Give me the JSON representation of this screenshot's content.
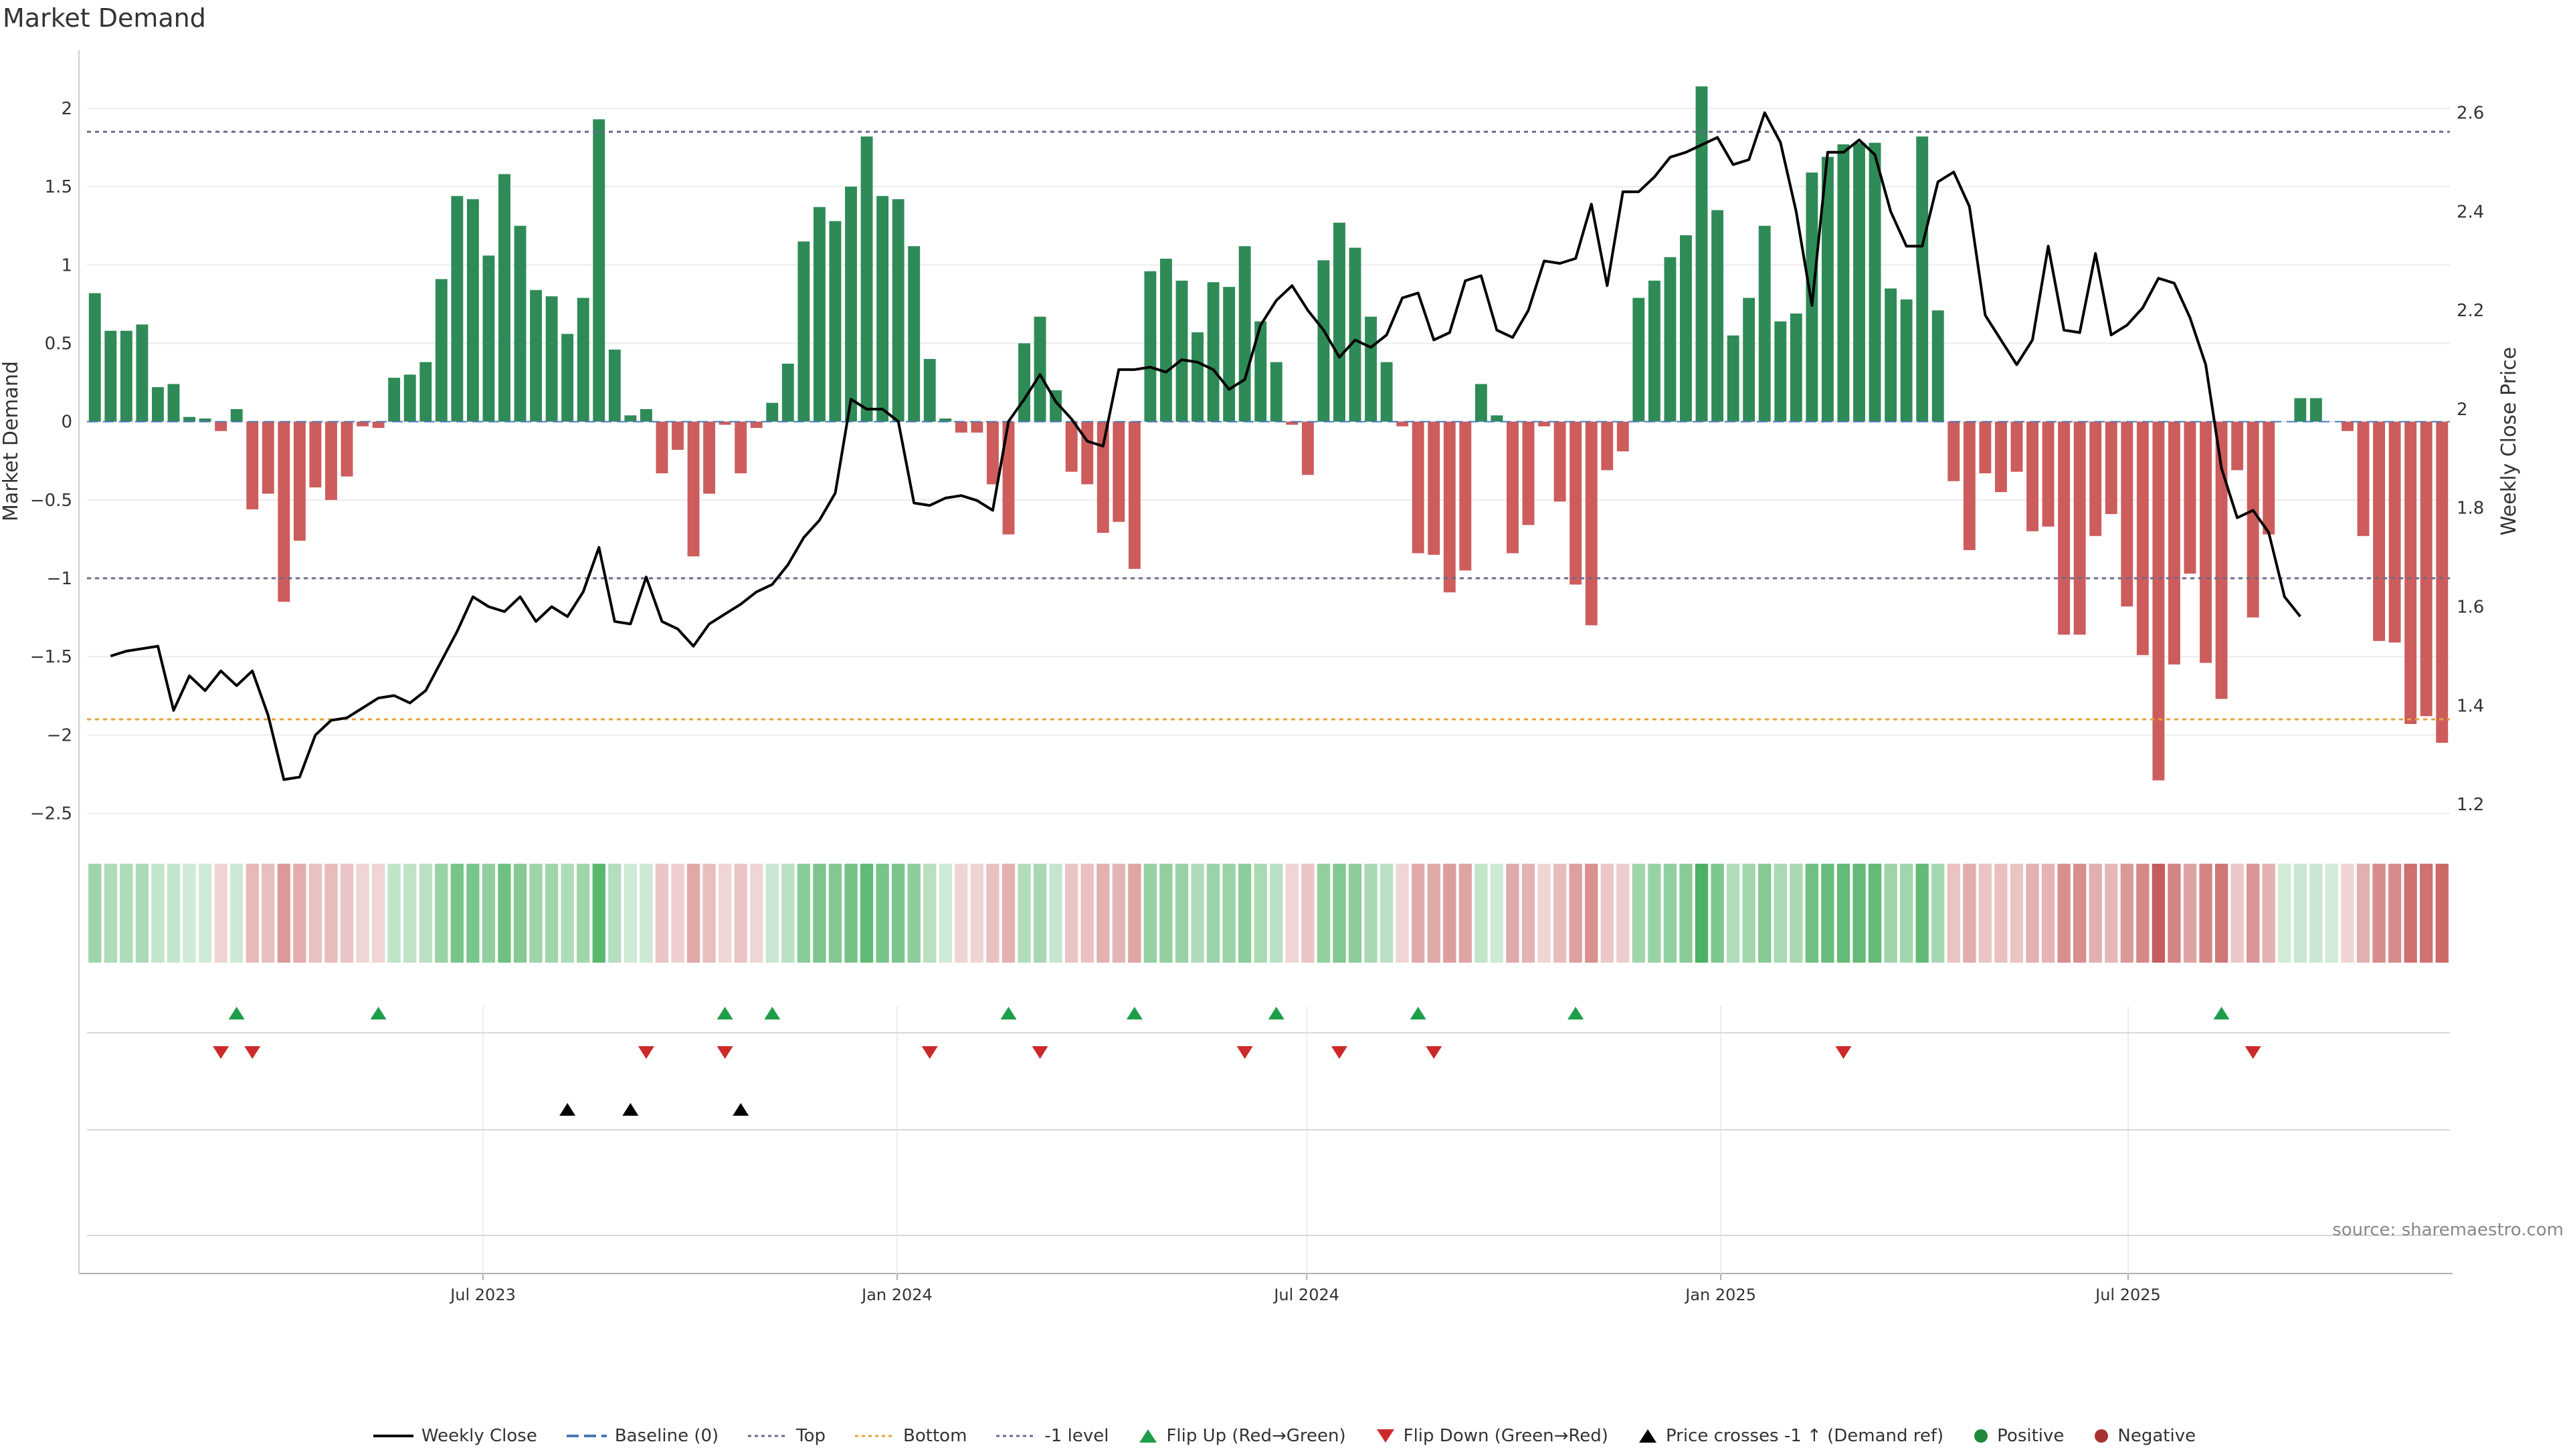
{
  "chart_data": {
    "type": "bar",
    "title": "Market Demand",
    "y_left_label": "Market Demand",
    "y_right_label": "Weekly Close Price",
    "ylim_left": [
      -2.6,
      2.35
    ],
    "ylim_right": [
      1.15,
      2.72
    ],
    "y_left_ticks": [
      2,
      1.5,
      1,
      0.5,
      0,
      -0.5,
      -1,
      -1.5,
      -2,
      -2.5
    ],
    "y_right_ticks": [
      2.6,
      2.4,
      2.2,
      2,
      1.8,
      1.6,
      1.4,
      1.2
    ],
    "x_start": "2023-01-06",
    "x_tick_labels": [
      {
        "date": "2023-07-01",
        "label": "Jul 2023"
      },
      {
        "date": "2024-01-01",
        "label": "Jan 2024"
      },
      {
        "date": "2024-07-01",
        "label": "Jul 2024"
      },
      {
        "date": "2025-01-01",
        "label": "Jan 2025"
      },
      {
        "date": "2025-07-01",
        "label": "Jul 2025"
      }
    ],
    "reference_lines": {
      "top": 1.85,
      "bottom": -1.9,
      "minus_one_level": -1,
      "baseline": 0
    },
    "colors": {
      "positive": "#2e8b57",
      "negative": "#cd5c5c",
      "price": "#000000",
      "top": "#6b6b8a",
      "bottom": "#e8a23a",
      "baseline": "#4a7ab8",
      "flip_up": "#1e9e4a",
      "flip_down": "#cc2a2a",
      "cross": "#000000"
    },
    "demand": [
      0.82,
      0.58,
      0.58,
      0.62,
      0.22,
      0.24,
      0.03,
      0.02,
      -0.06,
      0.08,
      -0.56,
      -0.46,
      -1.15,
      -0.76,
      -0.42,
      -0.5,
      -0.35,
      -0.03,
      -0.04,
      0.28,
      0.3,
      0.38,
      0.91,
      1.44,
      1.42,
      1.06,
      1.58,
      1.25,
      0.84,
      0.8,
      0.56,
      0.79,
      1.93,
      0.46,
      0.04,
      0.08,
      -0.33,
      -0.18,
      -0.86,
      -0.46,
      -0.02,
      -0.33,
      -0.04,
      0.12,
      0.37,
      1.15,
      1.37,
      1.28,
      1.5,
      1.82,
      1.44,
      1.42,
      1.12,
      0.4,
      0.02,
      -0.07,
      -0.07,
      -0.4,
      -0.72,
      0.5,
      0.67,
      0.2,
      -0.32,
      -0.4,
      -0.71,
      -0.64,
      -0.94,
      0.96,
      1.04,
      0.9,
      0.57,
      0.89,
      0.86,
      1.12,
      0.64,
      0.38,
      -0.02,
      -0.34,
      1.03,
      1.27,
      1.11,
      0.67,
      0.38,
      -0.03,
      -0.84,
      -0.85,
      -1.09,
      -0.95,
      0.24,
      0.04,
      -0.84,
      -0.66,
      -0.03,
      -0.51,
      -1.04,
      -1.3,
      -0.31,
      -0.19,
      0.79,
      0.9,
      1.05,
      1.19,
      2.14,
      1.35,
      0.55,
      0.79,
      1.25,
      0.64,
      0.69,
      1.59,
      1.69,
      1.77,
      1.78,
      1.78,
      0.85,
      0.78,
      1.82,
      0.71,
      -0.38,
      -0.82,
      -0.33,
      -0.45,
      -0.32,
      -0.7,
      -0.67,
      -1.36,
      -1.36,
      -0.73,
      -0.59,
      -1.18,
      -1.49,
      -2.29,
      -1.55,
      -0.97,
      -1.54,
      -1.77,
      -0.31,
      -1.25,
      -0.72,
      0.0,
      0.15,
      0.15,
      0.0,
      -0.06,
      -0.73,
      -1.4,
      -1.41,
      -1.93,
      -1.88,
      -2.05
    ],
    "weekly_close": [
      1.5,
      1.51,
      1.515,
      1.52,
      1.39,
      1.46,
      1.43,
      1.47,
      1.44,
      1.47,
      1.38,
      1.25,
      1.255,
      1.34,
      1.37,
      1.375,
      1.395,
      1.415,
      1.42,
      1.405,
      1.43,
      1.49,
      1.55,
      1.62,
      1.6,
      1.59,
      1.62,
      1.57,
      1.6,
      1.58,
      1.63,
      1.72,
      1.57,
      1.565,
      1.66,
      1.57,
      1.555,
      1.52,
      1.565,
      1.585,
      1.605,
      1.63,
      1.645,
      1.685,
      1.74,
      1.775,
      1.83,
      2.02,
      2.0,
      2.0,
      1.975,
      1.81,
      1.805,
      1.82,
      1.825,
      1.815,
      1.795,
      1.975,
      2.02,
      2.07,
      2.015,
      1.98,
      1.935,
      1.925,
      2.08,
      2.08,
      2.085,
      2.075,
      2.1,
      2.095,
      2.08,
      2.04,
      2.06,
      2.17,
      2.22,
      2.25,
      2.2,
      2.16,
      2.105,
      2.14,
      2.125,
      2.15,
      2.225,
      2.235,
      2.14,
      2.155,
      2.26,
      2.27,
      2.16,
      2.145,
      2.2,
      2.3,
      2.295,
      2.305,
      2.415,
      2.25,
      2.44,
      2.44,
      2.47,
      2.51,
      2.52,
      2.535,
      2.55,
      2.495,
      2.505,
      2.6,
      2.54,
      2.4,
      2.21,
      2.52,
      2.52,
      2.545,
      2.515,
      2.4,
      2.33,
      2.33,
      2.46,
      2.48,
      2.41,
      2.19,
      2.14,
      2.09,
      2.14,
      2.33,
      2.16,
      2.155,
      2.315,
      2.15,
      2.17,
      2.205,
      2.265,
      2.255,
      2.185,
      2.09,
      1.88,
      1.78,
      1.795,
      1.75,
      1.62,
      1.58
    ],
    "weekly_close_start_index": 1,
    "flip_up_idx": [
      9,
      18,
      40,
      43,
      58,
      66,
      75,
      84,
      94,
      135
    ],
    "flip_down_idx": [
      8,
      10,
      35,
      40,
      53,
      60,
      73,
      79,
      85,
      111,
      137
    ],
    "cross_idx": [
      30,
      34,
      41
    ],
    "legend": [
      "Weekly Close",
      "Baseline (0)",
      "Top",
      "Bottom",
      "-1 level",
      "Flip Up (Red→Green)",
      "Flip Down (Green→Red)",
      "Price crosses -1 ↑ (Demand ref)",
      "Positive",
      "Negative"
    ]
  },
  "source_text": "source: sharemaestro.com"
}
